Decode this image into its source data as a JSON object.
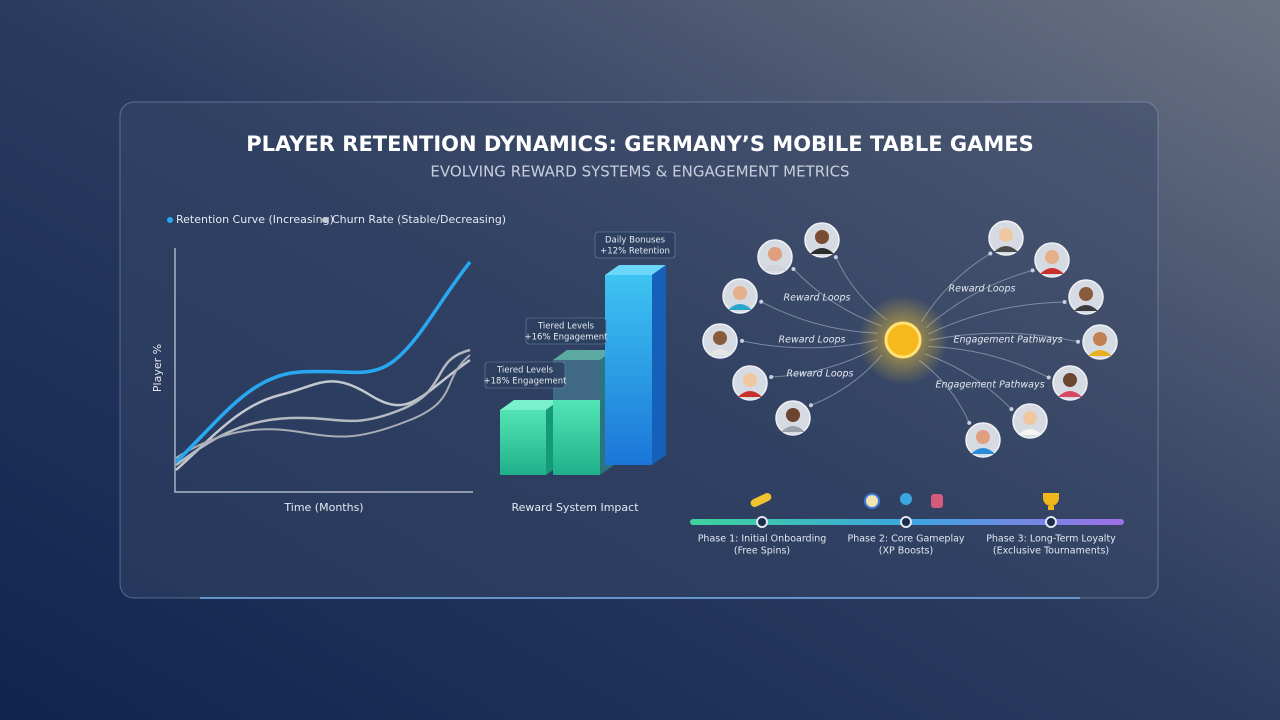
{
  "header": {
    "title": "PLAYER RETENTION DYNAMICS: GERMANY’S MOBILE TABLE GAMES",
    "subtitle": "EVOLVING REWARD SYSTEMS & ENGAGEMENT METRICS"
  },
  "line_panel": {
    "legend": [
      "Retention Curve (Increasing)",
      "Churn Rate (Stable/Decreasing)"
    ],
    "y_label": "Player %",
    "x_label": "Time (Months)"
  },
  "bar_panel": {
    "callouts": [
      {
        "title": "Tiered Levels",
        "detail": "+18% Engagement"
      },
      {
        "title": "Tiered Levels",
        "detail": "+16% Engagement"
      },
      {
        "title": "Daily Bonuses",
        "detail": "+12% Retention"
      }
    ],
    "caption": "Reward System Impact"
  },
  "network": {
    "left_labels": [
      "Reward Loops",
      "Reward Loops",
      "Reward Loops"
    ],
    "right_labels": [
      "Reward Loops",
      "Engagement Pathways",
      "Engagement Pathways"
    ]
  },
  "timeline": {
    "phases": [
      {
        "title": "Phase 1: Initial Onboarding",
        "detail": "(Free Spins)"
      },
      {
        "title": "Phase 2: Core Gameplay",
        "detail": "(XP Boosts)"
      },
      {
        "title": "Phase 3: Long-Term Loyalty",
        "detail": "(Exclusive Tournaments)"
      }
    ]
  }
}
